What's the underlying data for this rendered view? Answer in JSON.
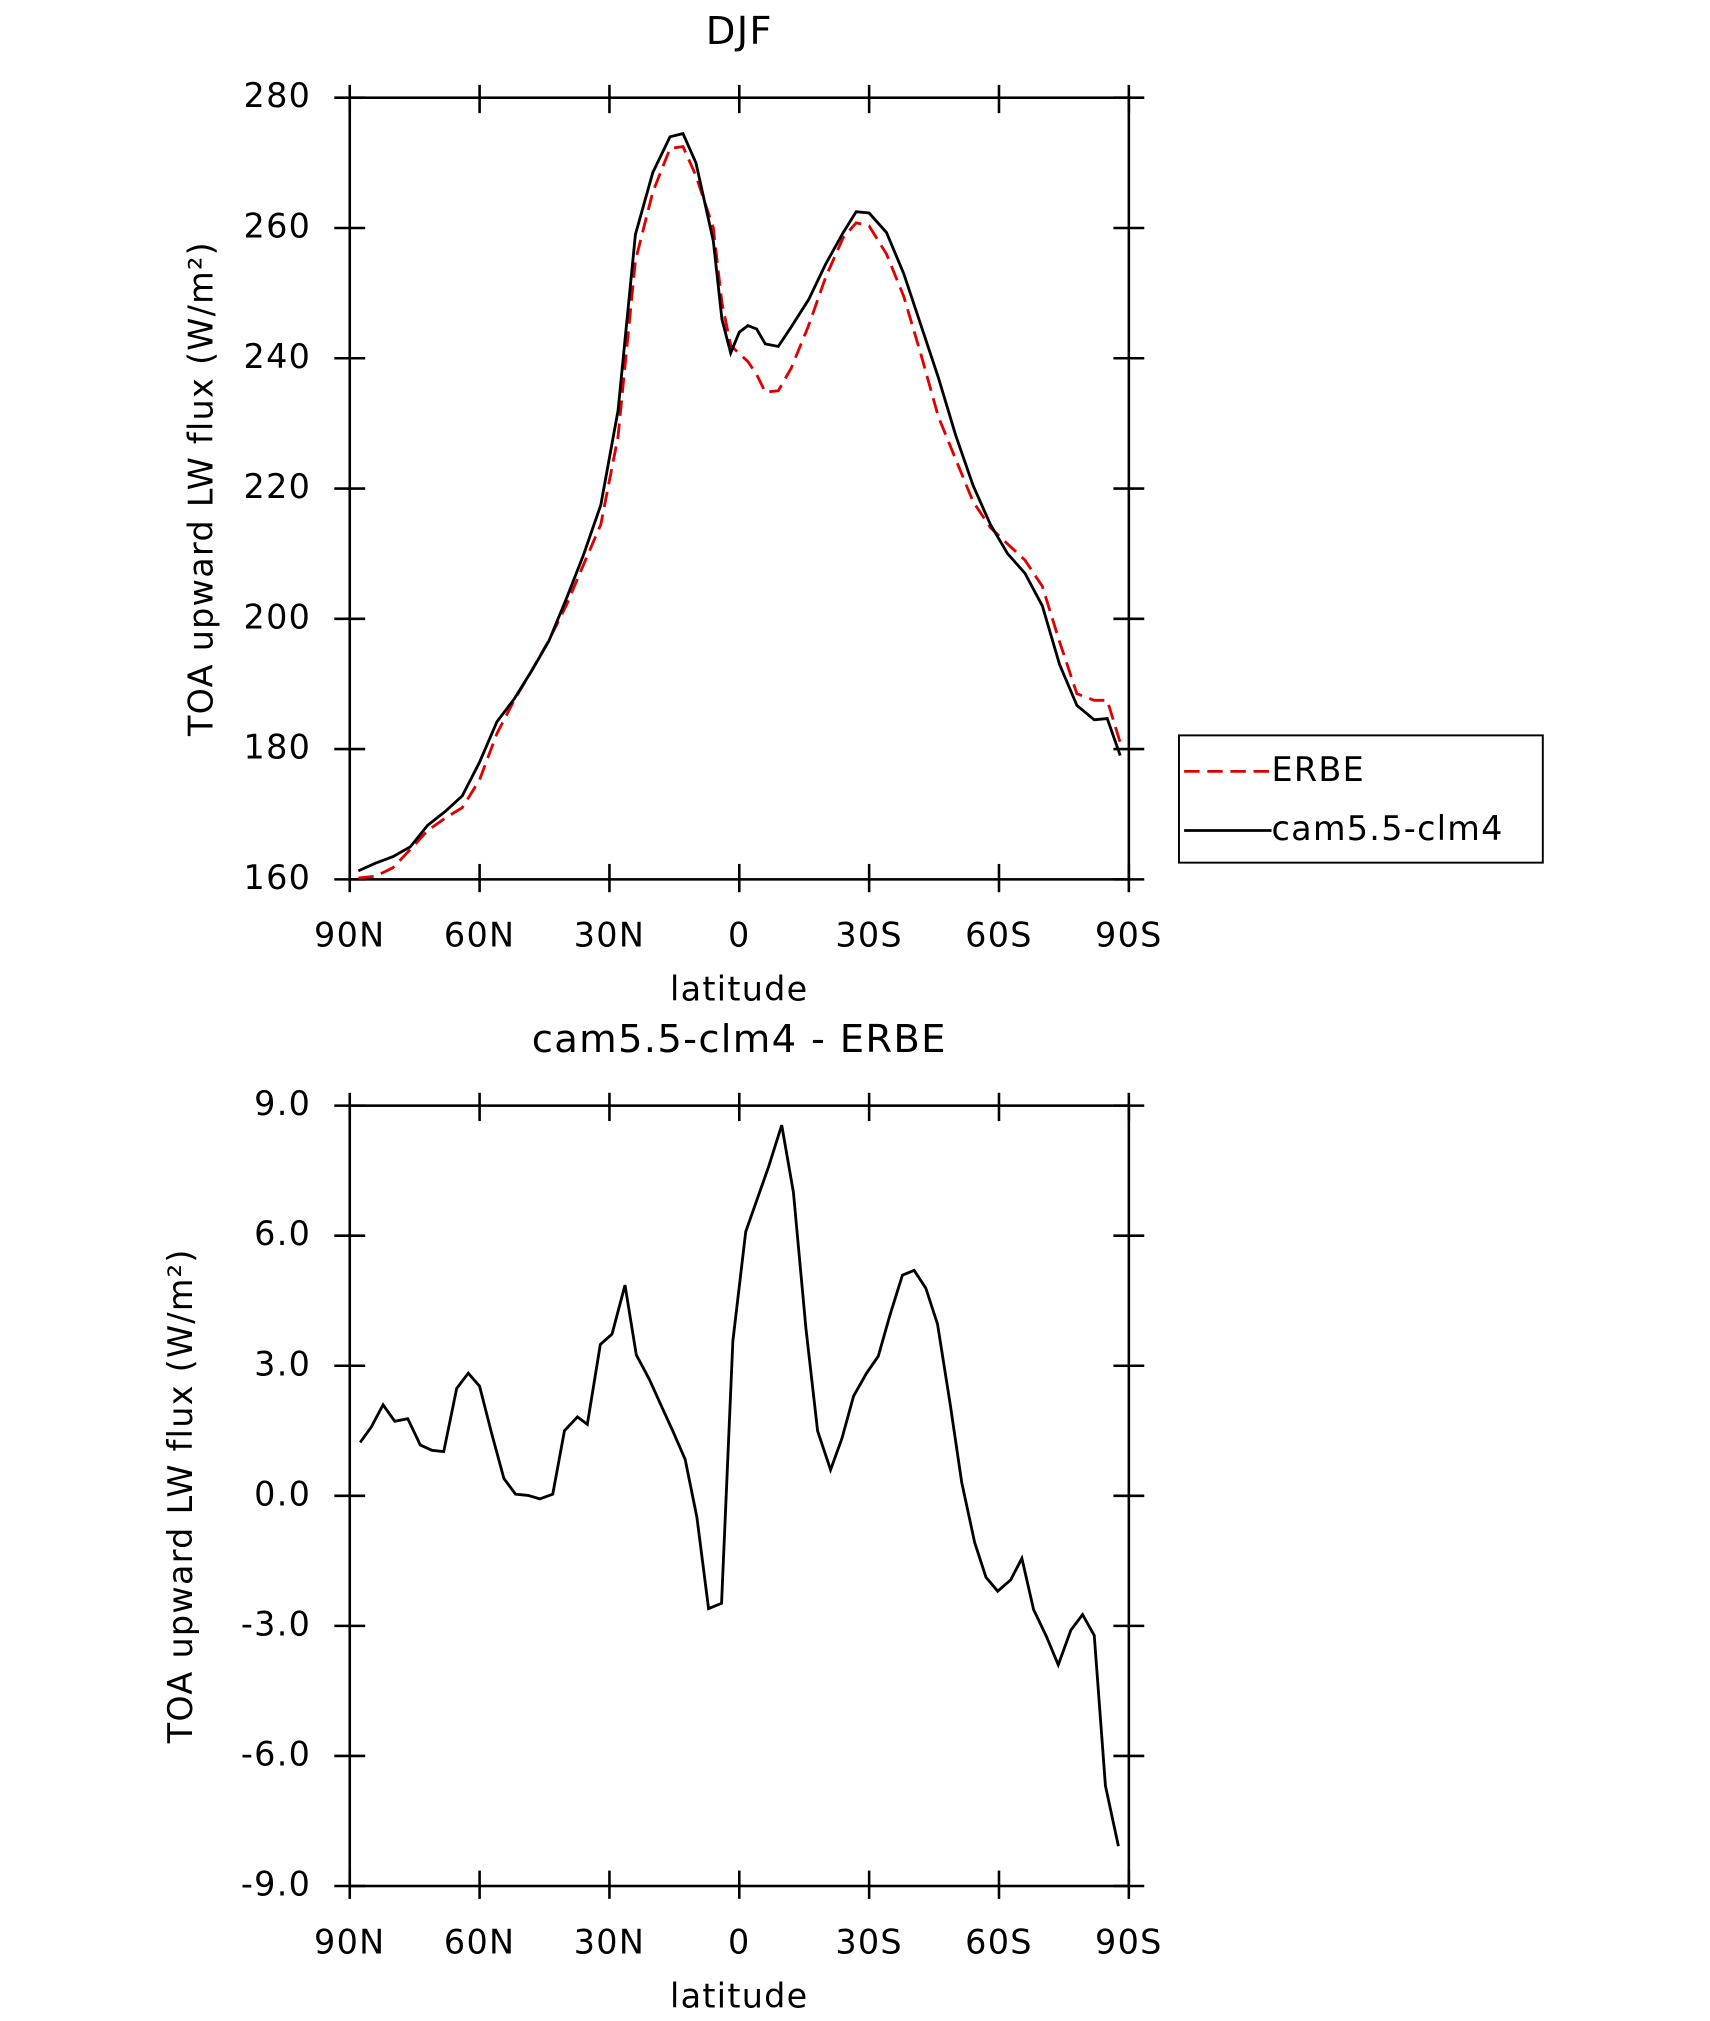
{
  "chart_data": [
    {
      "type": "line",
      "title": "DJF",
      "x_label": "latitude",
      "y_label": "TOA upward LW flux (W/m²)",
      "x": [
        88,
        84,
        80,
        76,
        72,
        68,
        64,
        60,
        56,
        52,
        48,
        44,
        40,
        36,
        32,
        28,
        24,
        20,
        16,
        13,
        10,
        6,
        4,
        2,
        0,
        -2,
        -4,
        -6,
        -9,
        -12,
        -16,
        -20,
        -24,
        -27,
        -30,
        -34,
        -38,
        -42,
        -46,
        -50,
        -54,
        -58,
        -62,
        -66,
        -70,
        -74,
        -78,
        -82,
        -85,
        -88
      ],
      "series": [
        {
          "name": "ERBE",
          "color": "#e00000",
          "dash": true,
          "values": [
            160.2,
            160.5,
            161.8,
            164.6,
            167.5,
            169.4,
            171,
            175.3,
            182.4,
            187.5,
            192,
            196.7,
            202,
            208.3,
            214.5,
            228,
            255,
            265.5,
            272.2,
            272.5,
            268,
            260,
            248.5,
            242,
            240.7,
            239.5,
            237.5,
            234.8,
            235,
            238.5,
            245,
            252.5,
            258.5,
            260.8,
            260.3,
            256,
            249.5,
            240.5,
            231,
            224.5,
            218,
            214,
            211.5,
            209,
            205,
            196.5,
            188.5,
            187.5,
            187.5,
            181
          ]
        },
        {
          "name": "cam5.5-clm4",
          "color": "#000000",
          "dash": false,
          "values": [
            161.3,
            162.5,
            163.5,
            165,
            168.3,
            170.4,
            172.8,
            178,
            184.2,
            187.7,
            192,
            196.6,
            203,
            209.8,
            217.5,
            232,
            259,
            268.5,
            274,
            274.5,
            270,
            258,
            246,
            240.8,
            244,
            245,
            244.5,
            242.2,
            241.8,
            244.8,
            249,
            254.5,
            259.3,
            262.5,
            262.3,
            259.3,
            253,
            245,
            237,
            228.2,
            220.5,
            214.5,
            210,
            207,
            202,
            193,
            186.7,
            184.5,
            184.7,
            179
          ]
        }
      ],
      "xlim": [
        90,
        -90
      ],
      "xticks": [
        {
          "value": 90,
          "label": "90N"
        },
        {
          "value": 60,
          "label": "60N"
        },
        {
          "value": 30,
          "label": "30N"
        },
        0,
        {
          "value": -30,
          "label": "30S"
        },
        {
          "value": -60,
          "label": "60S"
        },
        {
          "value": -90,
          "label": "90S"
        }
      ],
      "ylim": [
        160,
        280
      ],
      "yticks": [
        160,
        180,
        200,
        220,
        240,
        260,
        280
      ],
      "legend": "right"
    },
    {
      "type": "line",
      "title": "cam5.5-clm4 - ERBE",
      "x_label": "latitude",
      "y_label": "TOA upward LW flux (W/m²)",
      "x": [
        87.6,
        85,
        82.3,
        79.6,
        76.6,
        73.7,
        71,
        68.3,
        65.3,
        62.6,
        60,
        57.3,
        54.4,
        51.7,
        48.8,
        46.1,
        43.1,
        40.4,
        37.4,
        35.1,
        32.1,
        29.4,
        26.4,
        23.8,
        20.8,
        18.1,
        15.4,
        12.5,
        9.8,
        7.1,
        4.1,
        1.5,
        -1.5,
        -4.2,
        -6.8,
        -9.8,
        -12.5,
        -15.4,
        -18.1,
        -21.1,
        -23.7,
        -26.4,
        -29.4,
        -32.1,
        -34.8,
        -37.7,
        -40.4,
        -43.1,
        -45.8,
        -48.7,
        -51.4,
        -54.4,
        -57,
        -59.7,
        -62.7,
        -65.3,
        -68,
        -71,
        -73.7,
        -76.6,
        -79.3,
        -82,
        -84.6,
        -87.6
      ],
      "series": [
        {
          "color": "#000000",
          "values": [
            1.23,
            1.59,
            2.1,
            1.72,
            1.78,
            1.17,
            1.05,
            1.02,
            2.48,
            2.83,
            2.53,
            1.47,
            0.4,
            0.04,
            0.01,
            -0.07,
            0.04,
            1.5,
            1.82,
            1.65,
            3.49,
            3.73,
            4.86,
            3.25,
            2.69,
            2.09,
            1.5,
            0.84,
            -0.49,
            -2.6,
            -2.48,
            3.57,
            6.09,
            6.86,
            7.6,
            8.55,
            7.0,
            3.87,
            1.5,
            0.6,
            1.32,
            2.3,
            2.83,
            3.22,
            4.17,
            5.09,
            5.2,
            4.79,
            3.96,
            2.12,
            0.31,
            -1.08,
            -1.88,
            -2.2,
            -1.94,
            -1.44,
            -2.62,
            -3.25,
            -3.9,
            -3.1,
            -2.74,
            -3.22,
            -6.69,
            -8.08
          ]
        }
      ],
      "xlim": [
        90,
        -90
      ],
      "xticks": [
        {
          "value": 90,
          "label": "90N"
        },
        {
          "value": 60,
          "label": "60N"
        },
        {
          "value": 30,
          "label": "30N"
        },
        0,
        {
          "value": -30,
          "label": "30S"
        },
        {
          "value": -60,
          "label": "60S"
        },
        {
          "value": -90,
          "label": "90S"
        }
      ],
      "ylim": [
        -9,
        9
      ],
      "yticks": [
        {
          "value": -9,
          "label": "-9.0"
        },
        {
          "value": -6,
          "label": "-6.0"
        },
        {
          "value": -3,
          "label": "-3.0"
        },
        {
          "value": 0,
          "label": "0.0"
        },
        {
          "value": 3,
          "label": "3.0"
        },
        {
          "value": 6,
          "label": "6.0"
        },
        {
          "value": 9,
          "label": "9.0"
        }
      ]
    }
  ]
}
